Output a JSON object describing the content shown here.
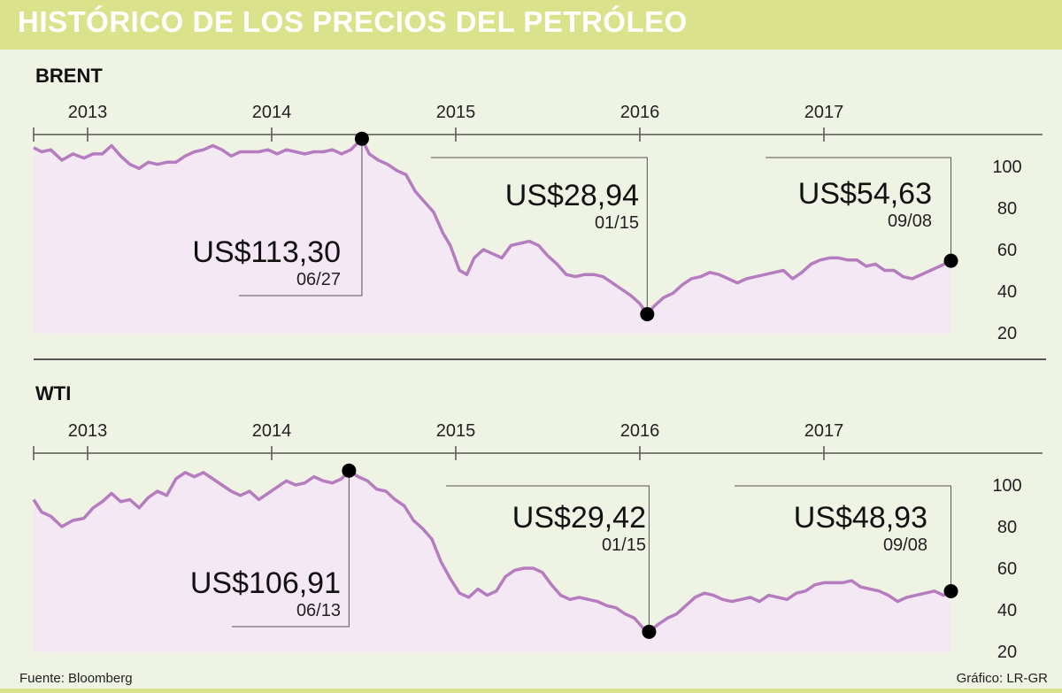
{
  "title": "HISTÓRICO DE LOS PRECIOS DEL PETRÓLEO",
  "source": "Fuente: Bloomberg",
  "credit": "Gráfico: LR-GR",
  "colors": {
    "header": "#dbe28c",
    "background": "#eef3e4",
    "line": "#b57cbf",
    "fill": "#f4e8f4",
    "marker": "#000000"
  },
  "chart_data": [
    {
      "type": "area",
      "name": "BRENT",
      "x_tick_labels": [
        "2013",
        "2014",
        "2015",
        "2016",
        "2017"
      ],
      "y_ticks": [
        100,
        80,
        60,
        40,
        20
      ],
      "ylim": [
        10,
        115
      ],
      "xlim": [
        2012.7,
        2017.7
      ],
      "points": [
        [
          2012.7,
          109
        ],
        [
          2012.75,
          107
        ],
        [
          2012.8,
          108
        ],
        [
          2012.86,
          103
        ],
        [
          2012.92,
          106
        ],
        [
          2012.98,
          104
        ],
        [
          2013.03,
          106
        ],
        [
          2013.08,
          106
        ],
        [
          2013.13,
          110
        ],
        [
          2013.18,
          105
        ],
        [
          2013.23,
          101
        ],
        [
          2013.28,
          99
        ],
        [
          2013.33,
          102
        ],
        [
          2013.38,
          101
        ],
        [
          2013.43,
          102
        ],
        [
          2013.48,
          102
        ],
        [
          2013.53,
          105
        ],
        [
          2013.58,
          107
        ],
        [
          2013.63,
          108
        ],
        [
          2013.68,
          110
        ],
        [
          2013.73,
          108
        ],
        [
          2013.78,
          105
        ],
        [
          2013.83,
          107
        ],
        [
          2013.88,
          107
        ],
        [
          2013.93,
          107
        ],
        [
          2013.98,
          108
        ],
        [
          2014.03,
          106
        ],
        [
          2014.08,
          108
        ],
        [
          2014.13,
          107
        ],
        [
          2014.18,
          106
        ],
        [
          2014.23,
          107
        ],
        [
          2014.28,
          107
        ],
        [
          2014.33,
          108
        ],
        [
          2014.38,
          106
        ],
        [
          2014.43,
          108
        ],
        [
          2014.49,
          113.3
        ],
        [
          2014.53,
          106
        ],
        [
          2014.58,
          103
        ],
        [
          2014.63,
          101
        ],
        [
          2014.68,
          98
        ],
        [
          2014.73,
          96
        ],
        [
          2014.78,
          88
        ],
        [
          2014.83,
          83
        ],
        [
          2014.88,
          78
        ],
        [
          2014.93,
          68
        ],
        [
          2014.97,
          62
        ],
        [
          2015.02,
          50
        ],
        [
          2015.06,
          48
        ],
        [
          2015.1,
          56
        ],
        [
          2015.15,
          60
        ],
        [
          2015.2,
          58
        ],
        [
          2015.25,
          56
        ],
        [
          2015.3,
          62
        ],
        [
          2015.35,
          63
        ],
        [
          2015.4,
          64
        ],
        [
          2015.45,
          62
        ],
        [
          2015.5,
          57
        ],
        [
          2015.55,
          53
        ],
        [
          2015.6,
          48
        ],
        [
          2015.65,
          47
        ],
        [
          2015.7,
          48
        ],
        [
          2015.75,
          48
        ],
        [
          2015.8,
          47
        ],
        [
          2015.85,
          44
        ],
        [
          2015.9,
          41
        ],
        [
          2015.95,
          38
        ],
        [
          2016.0,
          34
        ],
        [
          2016.04,
          28.94
        ],
        [
          2016.08,
          33
        ],
        [
          2016.13,
          37
        ],
        [
          2016.18,
          39
        ],
        [
          2016.23,
          43
        ],
        [
          2016.28,
          46
        ],
        [
          2016.33,
          47
        ],
        [
          2016.38,
          49
        ],
        [
          2016.43,
          48
        ],
        [
          2016.48,
          46
        ],
        [
          2016.53,
          44
        ],
        [
          2016.58,
          46
        ],
        [
          2016.63,
          47
        ],
        [
          2016.68,
          48
        ],
        [
          2016.73,
          49
        ],
        [
          2016.78,
          50
        ],
        [
          2016.83,
          46
        ],
        [
          2016.88,
          49
        ],
        [
          2016.93,
          53
        ],
        [
          2016.98,
          55
        ],
        [
          2017.03,
          56
        ],
        [
          2017.08,
          56
        ],
        [
          2017.13,
          55
        ],
        [
          2017.18,
          55
        ],
        [
          2017.23,
          52
        ],
        [
          2017.28,
          53
        ],
        [
          2017.33,
          50
        ],
        [
          2017.38,
          50
        ],
        [
          2017.43,
          47
        ],
        [
          2017.48,
          46
        ],
        [
          2017.53,
          48
        ],
        [
          2017.58,
          50
        ],
        [
          2017.63,
          52
        ],
        [
          2017.69,
          54.63
        ]
      ],
      "annotations": [
        {
          "value": "US$113,30",
          "date": "06/27"
        },
        {
          "value": "US$28,94",
          "date": "01/15"
        },
        {
          "value": "US$54,63",
          "date": "09/08"
        }
      ]
    },
    {
      "type": "area",
      "name": "WTI",
      "x_tick_labels": [
        "2013",
        "2014",
        "2015",
        "2016",
        "2017"
      ],
      "y_ticks": [
        100,
        80,
        60,
        40,
        20
      ],
      "ylim": [
        10,
        115
      ],
      "xlim": [
        2012.7,
        2017.7
      ],
      "points": [
        [
          2012.7,
          93
        ],
        [
          2012.75,
          87
        ],
        [
          2012.8,
          85
        ],
        [
          2012.86,
          80
        ],
        [
          2012.92,
          83
        ],
        [
          2012.98,
          84
        ],
        [
          2013.03,
          89
        ],
        [
          2013.08,
          92
        ],
        [
          2013.13,
          96
        ],
        [
          2013.18,
          92
        ],
        [
          2013.23,
          93
        ],
        [
          2013.28,
          89
        ],
        [
          2013.33,
          94
        ],
        [
          2013.38,
          97
        ],
        [
          2013.43,
          95
        ],
        [
          2013.48,
          103
        ],
        [
          2013.53,
          106
        ],
        [
          2013.58,
          104
        ],
        [
          2013.63,
          106
        ],
        [
          2013.68,
          103
        ],
        [
          2013.73,
          100
        ],
        [
          2013.78,
          97
        ],
        [
          2013.83,
          95
        ],
        [
          2013.88,
          97
        ],
        [
          2013.93,
          93
        ],
        [
          2013.98,
          96
        ],
        [
          2014.03,
          99
        ],
        [
          2014.08,
          102
        ],
        [
          2014.13,
          100
        ],
        [
          2014.18,
          101
        ],
        [
          2014.23,
          104
        ],
        [
          2014.28,
          102
        ],
        [
          2014.33,
          101
        ],
        [
          2014.38,
          103
        ],
        [
          2014.42,
          106.91
        ],
        [
          2014.47,
          104
        ],
        [
          2014.52,
          102
        ],
        [
          2014.57,
          98
        ],
        [
          2014.62,
          97
        ],
        [
          2014.67,
          93
        ],
        [
          2014.72,
          90
        ],
        [
          2014.77,
          83
        ],
        [
          2014.82,
          79
        ],
        [
          2014.87,
          74
        ],
        [
          2014.92,
          63
        ],
        [
          2014.97,
          55
        ],
        [
          2015.02,
          48
        ],
        [
          2015.07,
          46
        ],
        [
          2015.12,
          50
        ],
        [
          2015.17,
          47
        ],
        [
          2015.22,
          49
        ],
        [
          2015.27,
          56
        ],
        [
          2015.32,
          59
        ],
        [
          2015.37,
          60
        ],
        [
          2015.42,
          60
        ],
        [
          2015.47,
          58
        ],
        [
          2015.52,
          52
        ],
        [
          2015.57,
          47
        ],
        [
          2015.62,
          45
        ],
        [
          2015.67,
          46
        ],
        [
          2015.72,
          45
        ],
        [
          2015.77,
          44
        ],
        [
          2015.82,
          42
        ],
        [
          2015.87,
          41
        ],
        [
          2015.92,
          38
        ],
        [
          2015.97,
          36
        ],
        [
          2016.02,
          31
        ],
        [
          2016.05,
          29.42
        ],
        [
          2016.1,
          33
        ],
        [
          2016.15,
          36
        ],
        [
          2016.2,
          38
        ],
        [
          2016.25,
          42
        ],
        [
          2016.3,
          46
        ],
        [
          2016.35,
          48
        ],
        [
          2016.4,
          47
        ],
        [
          2016.45,
          45
        ],
        [
          2016.5,
          44
        ],
        [
          2016.55,
          45
        ],
        [
          2016.6,
          46
        ],
        [
          2016.65,
          44
        ],
        [
          2016.7,
          47
        ],
        [
          2016.75,
          46
        ],
        [
          2016.8,
          45
        ],
        [
          2016.85,
          48
        ],
        [
          2016.9,
          49
        ],
        [
          2016.95,
          52
        ],
        [
          2017.0,
          53
        ],
        [
          2017.05,
          53
        ],
        [
          2017.1,
          53
        ],
        [
          2017.15,
          54
        ],
        [
          2017.2,
          51
        ],
        [
          2017.25,
          50
        ],
        [
          2017.3,
          49
        ],
        [
          2017.35,
          47
        ],
        [
          2017.4,
          44
        ],
        [
          2017.45,
          46
        ],
        [
          2017.5,
          47
        ],
        [
          2017.55,
          48
        ],
        [
          2017.6,
          49
        ],
        [
          2017.65,
          47
        ],
        [
          2017.69,
          48.93
        ]
      ],
      "annotations": [
        {
          "value": "US$106,91",
          "date": "06/13"
        },
        {
          "value": "US$29,42",
          "date": "01/15"
        },
        {
          "value": "US$48,93",
          "date": "09/08"
        }
      ]
    }
  ]
}
